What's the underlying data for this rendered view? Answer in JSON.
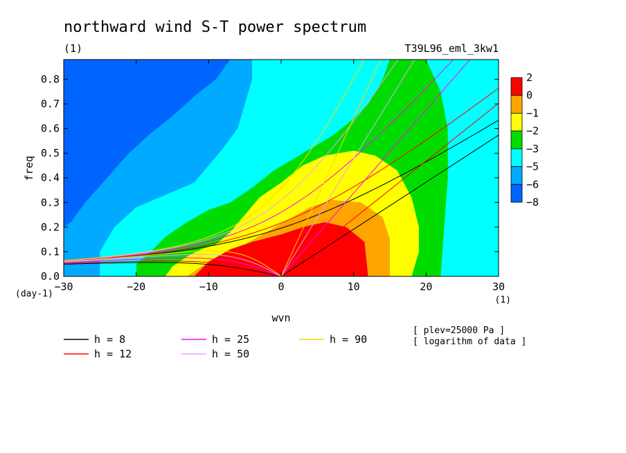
{
  "chart_data": {
    "type": "contour",
    "title": "northward wind S-T power spectrum",
    "subtitle_left": "(1)",
    "subtitle_right": "T39L96_eml_3kw1",
    "xlabel": "wvn",
    "ylabel": "freq",
    "x_unit": "(1)",
    "y_unit": "(day-1)",
    "xlim": [
      -30,
      30
    ],
    "ylim": [
      0,
      0.88
    ],
    "xticks": [
      -30,
      -20,
      -10,
      0,
      10,
      20,
      30
    ],
    "yticks": [
      0.0,
      0.1,
      0.2,
      0.3,
      0.4,
      0.5,
      0.6,
      0.7,
      0.8
    ],
    "colorbar": {
      "labels": [
        "2",
        "0",
        "−1",
        "−2",
        "−3",
        "−5",
        "−6",
        "−8"
      ],
      "colors": [
        "#ff0000",
        "#ffa500",
        "#ffff00",
        "#00dc00",
        "#00ffff",
        "#00aaff",
        "#0064ff"
      ]
    },
    "contour_regions": [
      {
        "level": "<-6",
        "color": "#0064ff",
        "polygon": [
          [
            -30,
            0.88
          ],
          [
            -30,
            0.2
          ],
          [
            -29,
            0.22
          ],
          [
            -27,
            0.3
          ],
          [
            -24,
            0.4
          ],
          [
            -21,
            0.5
          ],
          [
            -18,
            0.58
          ],
          [
            -15,
            0.65
          ],
          [
            -12,
            0.73
          ],
          [
            -9,
            0.8
          ],
          [
            -7,
            0.88
          ]
        ]
      },
      {
        "level": "-6 to -5",
        "color": "#00aaff",
        "polygon": [
          [
            -30,
            0.2
          ],
          [
            -30,
            0
          ],
          [
            -25,
            0
          ],
          [
            -25,
            0.1
          ],
          [
            -23,
            0.2
          ],
          [
            -20,
            0.28
          ],
          [
            -16,
            0.33
          ],
          [
            -12,
            0.38
          ],
          [
            -10,
            0.45
          ],
          [
            -8,
            0.52
          ],
          [
            -6,
            0.6
          ],
          [
            -5,
            0.7
          ],
          [
            -4,
            0.8
          ],
          [
            -4,
            0.88
          ],
          [
            -7,
            0.88
          ],
          [
            -9,
            0.8
          ],
          [
            -12,
            0.73
          ],
          [
            -15,
            0.65
          ],
          [
            -18,
            0.58
          ],
          [
            -21,
            0.5
          ],
          [
            -24,
            0.4
          ],
          [
            -27,
            0.3
          ],
          [
            -29,
            0.22
          ]
        ]
      },
      {
        "level": "-5 to -3",
        "color": "#00ffff",
        "polygon": [
          [
            -25,
            0
          ],
          [
            -20,
            0
          ],
          [
            -20,
            0.05
          ],
          [
            -18,
            0.1
          ],
          [
            -16,
            0.16
          ],
          [
            -13,
            0.22
          ],
          [
            -10,
            0.27
          ],
          [
            -7,
            0.3
          ],
          [
            -4,
            0.36
          ],
          [
            -1,
            0.43
          ],
          [
            3,
            0.5
          ],
          [
            7,
            0.57
          ],
          [
            10,
            0.64
          ],
          [
            12,
            0.7
          ],
          [
            14,
            0.8
          ],
          [
            15,
            0.88
          ],
          [
            -4,
            0.88
          ],
          [
            -4,
            0.8
          ],
          [
            -5,
            0.7
          ],
          [
            -6,
            0.6
          ],
          [
            -8,
            0.52
          ],
          [
            -10,
            0.45
          ],
          [
            -12,
            0.38
          ],
          [
            -16,
            0.33
          ],
          [
            -20,
            0.28
          ],
          [
            -23,
            0.2
          ],
          [
            -25,
            0.1
          ]
        ]
      },
      {
        "level": "-3 to -2",
        "color": "#00dc00",
        "polygon": [
          [
            -20,
            0
          ],
          [
            -16,
            0
          ],
          [
            -15,
            0.04
          ],
          [
            -13,
            0.08
          ],
          [
            -11,
            0.11
          ],
          [
            -9,
            0.13
          ],
          [
            -7,
            0.18
          ],
          [
            -5,
            0.25
          ],
          [
            -3,
            0.32
          ],
          [
            0,
            0.38
          ],
          [
            3,
            0.45
          ],
          [
            6,
            0.49
          ],
          [
            10,
            0.51
          ],
          [
            13,
            0.49
          ],
          [
            16,
            0.43
          ],
          [
            18,
            0.32
          ],
          [
            19,
            0.2
          ],
          [
            19,
            0.1
          ],
          [
            18,
            0
          ],
          [
            22,
            0
          ],
          [
            22.5,
            0.2
          ],
          [
            23,
            0.4
          ],
          [
            23,
            0.6
          ],
          [
            22,
            0.75
          ],
          [
            20,
            0.88
          ],
          [
            15,
            0.88
          ],
          [
            14,
            0.8
          ],
          [
            12,
            0.7
          ],
          [
            10,
            0.64
          ],
          [
            7,
            0.57
          ],
          [
            3,
            0.5
          ],
          [
            -1,
            0.43
          ],
          [
            -4,
            0.36
          ],
          [
            -7,
            0.3
          ],
          [
            -10,
            0.27
          ],
          [
            -13,
            0.22
          ],
          [
            -16,
            0.16
          ],
          [
            -18,
            0.1
          ],
          [
            -20,
            0.05
          ]
        ]
      },
      {
        "level": "-2 to -1",
        "color": "#ffff00",
        "polygon": [
          [
            -16,
            0
          ],
          [
            -13,
            0
          ],
          [
            -11,
            0.04
          ],
          [
            -8,
            0.08
          ],
          [
            -5,
            0.13
          ],
          [
            -2,
            0.18
          ],
          [
            1,
            0.23
          ],
          [
            4,
            0.28
          ],
          [
            7,
            0.31
          ],
          [
            11,
            0.3
          ],
          [
            14,
            0.24
          ],
          [
            15,
            0.15
          ],
          [
            15,
            0
          ],
          [
            18,
            0
          ],
          [
            19,
            0.1
          ],
          [
            19,
            0.2
          ],
          [
            18,
            0.32
          ],
          [
            16,
            0.43
          ],
          [
            13,
            0.49
          ],
          [
            10,
            0.51
          ],
          [
            6,
            0.49
          ],
          [
            3,
            0.45
          ],
          [
            0,
            0.38
          ],
          [
            -3,
            0.32
          ],
          [
            -5,
            0.25
          ],
          [
            -7,
            0.18
          ],
          [
            -9,
            0.13
          ],
          [
            -11,
            0.11
          ],
          [
            -13,
            0.08
          ],
          [
            -15,
            0.04
          ]
        ]
      },
      {
        "level": "-1 to 0",
        "color": "#ffa500",
        "polygon": [
          [
            -13,
            0
          ],
          [
            -12,
            0
          ],
          [
            -10,
            0.06
          ],
          [
            -7,
            0.11
          ],
          [
            -4,
            0.14
          ],
          [
            0,
            0.17
          ],
          [
            3,
            0.2
          ],
          [
            6,
            0.22
          ],
          [
            9,
            0.2
          ],
          [
            11.5,
            0.14
          ],
          [
            12,
            0
          ],
          [
            15,
            0
          ],
          [
            15,
            0.15
          ],
          [
            14,
            0.24
          ],
          [
            11,
            0.3
          ],
          [
            7,
            0.31
          ],
          [
            4,
            0.28
          ],
          [
            1,
            0.23
          ],
          [
            -2,
            0.18
          ],
          [
            -5,
            0.13
          ],
          [
            -8,
            0.08
          ],
          [
            -11,
            0.04
          ]
        ]
      },
      {
        "level": ">0",
        "color": "#ff0000",
        "polygon": [
          [
            -12,
            0
          ],
          [
            12,
            0
          ],
          [
            11.5,
            0.14
          ],
          [
            9,
            0.2
          ],
          [
            6,
            0.22
          ],
          [
            3,
            0.2
          ],
          [
            0,
            0.17
          ],
          [
            -4,
            0.14
          ],
          [
            -7,
            0.11
          ],
          [
            -10,
            0.06
          ]
        ]
      }
    ],
    "dispersion_curves": [
      {
        "name": "h =  8",
        "color": "#000000",
        "equivalent_depth": 8
      },
      {
        "name": "h = 12",
        "color": "#ff0000",
        "equivalent_depth": 12
      },
      {
        "name": "h = 25",
        "color": "#ff00ff",
        "equivalent_depth": 25
      },
      {
        "name": "h = 50",
        "color": "#e6a0ff",
        "equivalent_depth": 50
      },
      {
        "name": "h = 90",
        "color": "#ffd700",
        "equivalent_depth": 90
      }
    ],
    "annotations": [
      "[ plev=25000 Pa ]",
      "[ logarithm of data ]"
    ]
  }
}
